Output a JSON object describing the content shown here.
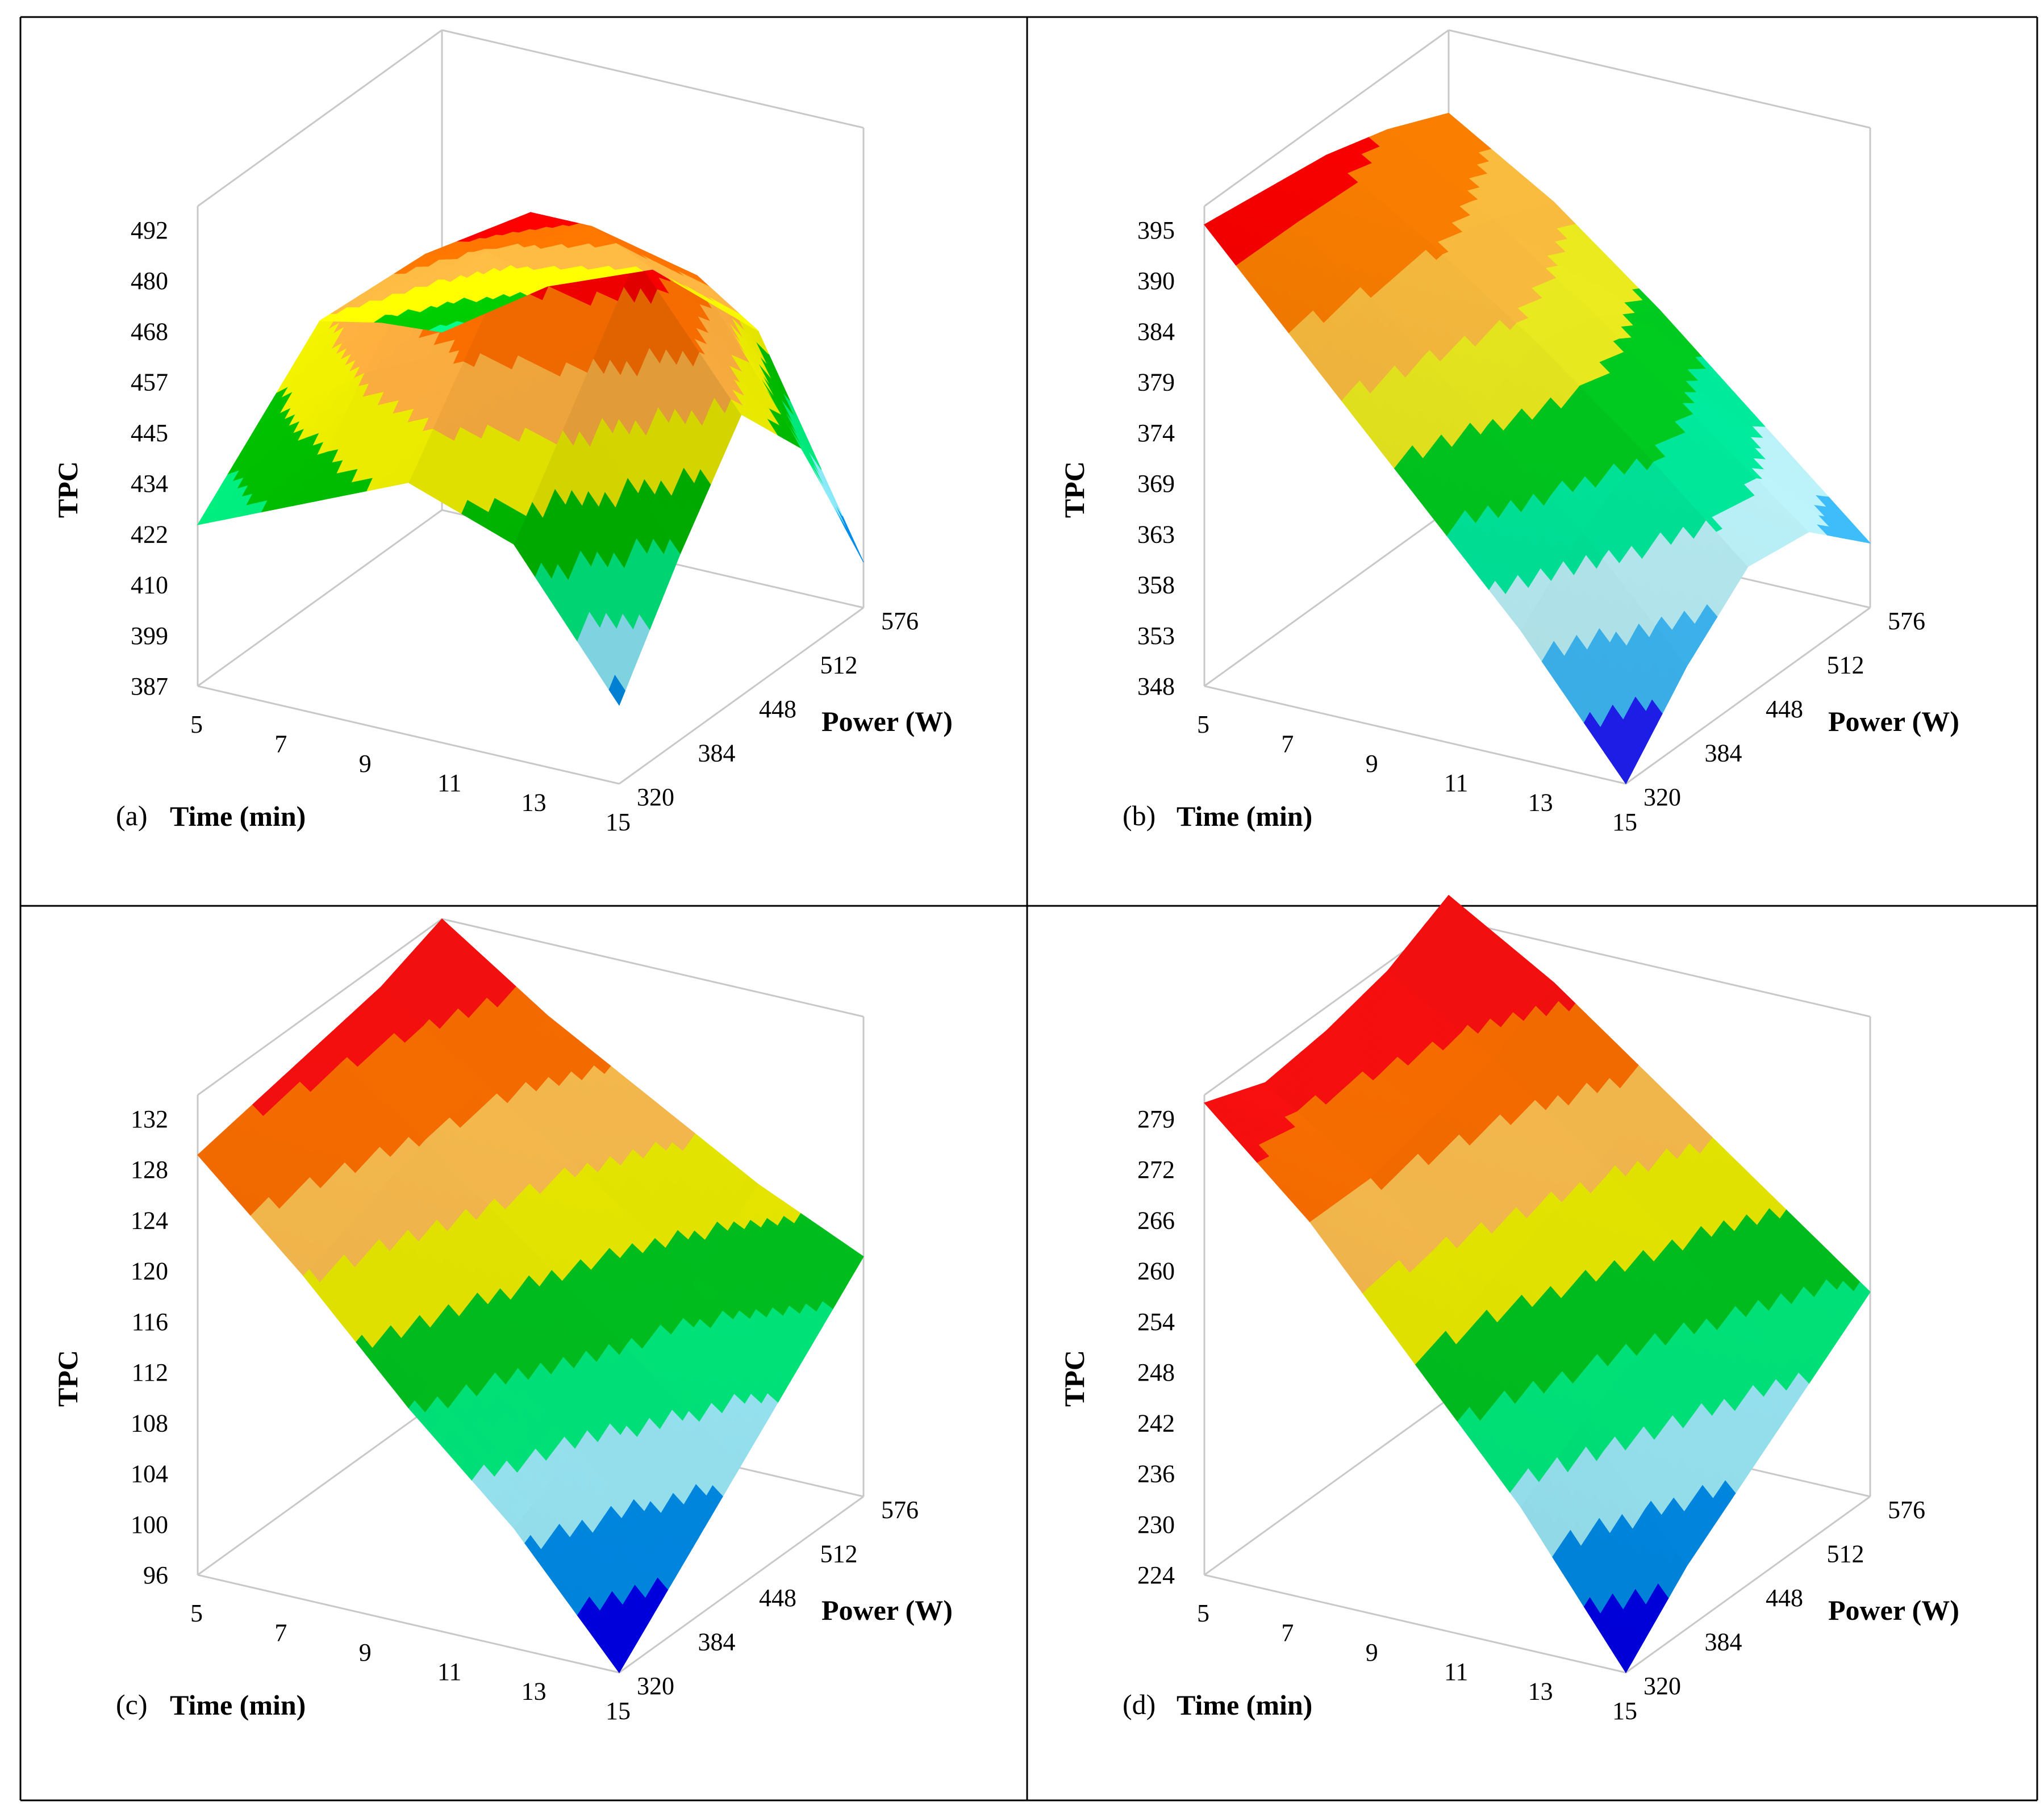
{
  "chart_data": [
    {
      "panel": "(a)",
      "type": "surface",
      "xlabel": "Time (min)",
      "ylabel": "Power (W)",
      "zlabel": "TPC",
      "x_ticks": [
        "5",
        "7",
        "9",
        "11",
        "13",
        "15"
      ],
      "y_ticks": [
        "320",
        "384",
        "448",
        "512",
        "576"
      ],
      "z_ticks": [
        "387",
        "399",
        "410",
        "422",
        "434",
        "445",
        "457",
        "468",
        "480",
        "492"
      ],
      "xlim": [
        5,
        15
      ],
      "ylim": [
        320,
        576
      ],
      "zlim": [
        387,
        503
      ],
      "colormap": [
        "#0000e0",
        "#0090f0",
        "#90f0ff",
        "#00f080",
        "#00c000",
        "#f0f000",
        "#ffb040",
        "#ff7000",
        "#ff0000",
        "#800000"
      ],
      "surface": {
        "x": [
          5,
          7.5,
          10,
          12.5,
          15
        ],
        "y": [
          320,
          384,
          448,
          512,
          576
        ],
        "z": [
          [
            426,
            437,
            448,
            439,
            406
          ],
          [
            440,
            458,
            470,
            463,
            432
          ],
          [
            454,
            476,
            492,
            487,
            455
          ],
          [
            443,
            466,
            478,
            472,
            436
          ],
          [
            430,
            447,
            457,
            448,
            398
          ]
        ]
      }
    },
    {
      "panel": "(b)",
      "type": "surface",
      "xlabel": "Time (min)",
      "ylabel": "Power (W)",
      "zlabel": "TPC",
      "x_ticks": [
        "5",
        "7",
        "9",
        "11",
        "13",
        "15"
      ],
      "y_ticks": [
        "320",
        "384",
        "448",
        "512",
        "576"
      ],
      "z_ticks": [
        "348",
        "353",
        "358",
        "363",
        "369",
        "374",
        "379",
        "384",
        "390",
        "395"
      ],
      "xlim": [
        5,
        15
      ],
      "ylim": [
        320,
        576
      ],
      "zlim": [
        348,
        400
      ],
      "colormap": [
        "#2020ff",
        "#40c0ff",
        "#c0f8ff",
        "#00f0a0",
        "#00d020",
        "#f0f020",
        "#ffc040",
        "#ff8000",
        "#ff0000"
      ],
      "surface": {
        "x": [
          5,
          7.5,
          10,
          12.5,
          15
        ],
        "y": [
          320,
          384,
          448,
          512,
          576
        ],
        "z": [
          [
            398,
            386,
            374,
            362,
            348
          ],
          [
            397,
            388,
            378,
            368,
            356
          ],
          [
            396,
            389,
            381,
            372,
            362
          ],
          [
            394,
            387,
            379,
            370,
            361
          ],
          [
            391,
            384,
            375,
            365,
            355
          ]
        ]
      }
    },
    {
      "panel": "(c)",
      "type": "surface",
      "xlabel": "Time (min)",
      "ylabel": "Power (W)",
      "zlabel": "TPC",
      "x_ticks": [
        "5",
        "7",
        "9",
        "11",
        "13",
        "15"
      ],
      "y_ticks": [
        "320",
        "384",
        "448",
        "512",
        "576"
      ],
      "z_ticks": [
        "96",
        "100",
        "104",
        "108",
        "112",
        "116",
        "120",
        "124",
        "128",
        "132"
      ],
      "xlim": [
        5,
        15
      ],
      "ylim": [
        320,
        576
      ],
      "zlim": [
        96,
        136
      ],
      "colormap": [
        "#0000f0",
        "#0090f0",
        "#a0f0ff",
        "#00f080",
        "#00c820",
        "#f0f000",
        "#ffc050",
        "#ff7000",
        "#ff1010"
      ],
      "surface": {
        "x": [
          5,
          7.5,
          10,
          12.5,
          15
        ],
        "y": [
          320,
          384,
          448,
          512,
          576
        ],
        "z": [
          [
            131,
            123,
            114,
            106,
            96
          ],
          [
            132,
            125,
            117,
            109,
            101
          ],
          [
            133,
            127,
            120,
            113,
            106
          ],
          [
            134,
            128,
            122,
            116,
            111
          ],
          [
            136,
            130,
            125,
            120,
            116
          ]
        ]
      }
    },
    {
      "panel": "(d)",
      "type": "surface",
      "xlabel": "Time (min)",
      "ylabel": "Power (W)",
      "zlabel": "TPC",
      "x_ticks": [
        "5",
        "7",
        "9",
        "11",
        "13",
        "15"
      ],
      "y_ticks": [
        "320",
        "384",
        "448",
        "512",
        "576"
      ],
      "z_ticks": [
        "224",
        "230",
        "236",
        "242",
        "248",
        "254",
        "260",
        "266",
        "272",
        "279"
      ],
      "xlim": [
        5,
        15
      ],
      "ylim": [
        320,
        576
      ],
      "zlim": [
        224,
        285
      ],
      "colormap": [
        "#0000f0",
        "#0090f0",
        "#a0f0ff",
        "#00f080",
        "#00c820",
        "#f0f000",
        "#ffc050",
        "#ff7000",
        "#ff1010"
      ],
      "surface": {
        "x": [
          5,
          7.5,
          10,
          12.5,
          15
        ],
        "y": [
          320,
          384,
          448,
          512,
          576
        ],
        "z": [
          [
            284,
            272,
            257,
            242,
            224
          ],
          [
            281,
            272,
            260,
            247,
            232
          ],
          [
            282,
            274,
            263,
            251,
            238
          ],
          [
            284,
            276,
            266,
            255,
            244
          ],
          [
            288,
            280,
            270,
            260,
            250
          ]
        ]
      }
    }
  ]
}
